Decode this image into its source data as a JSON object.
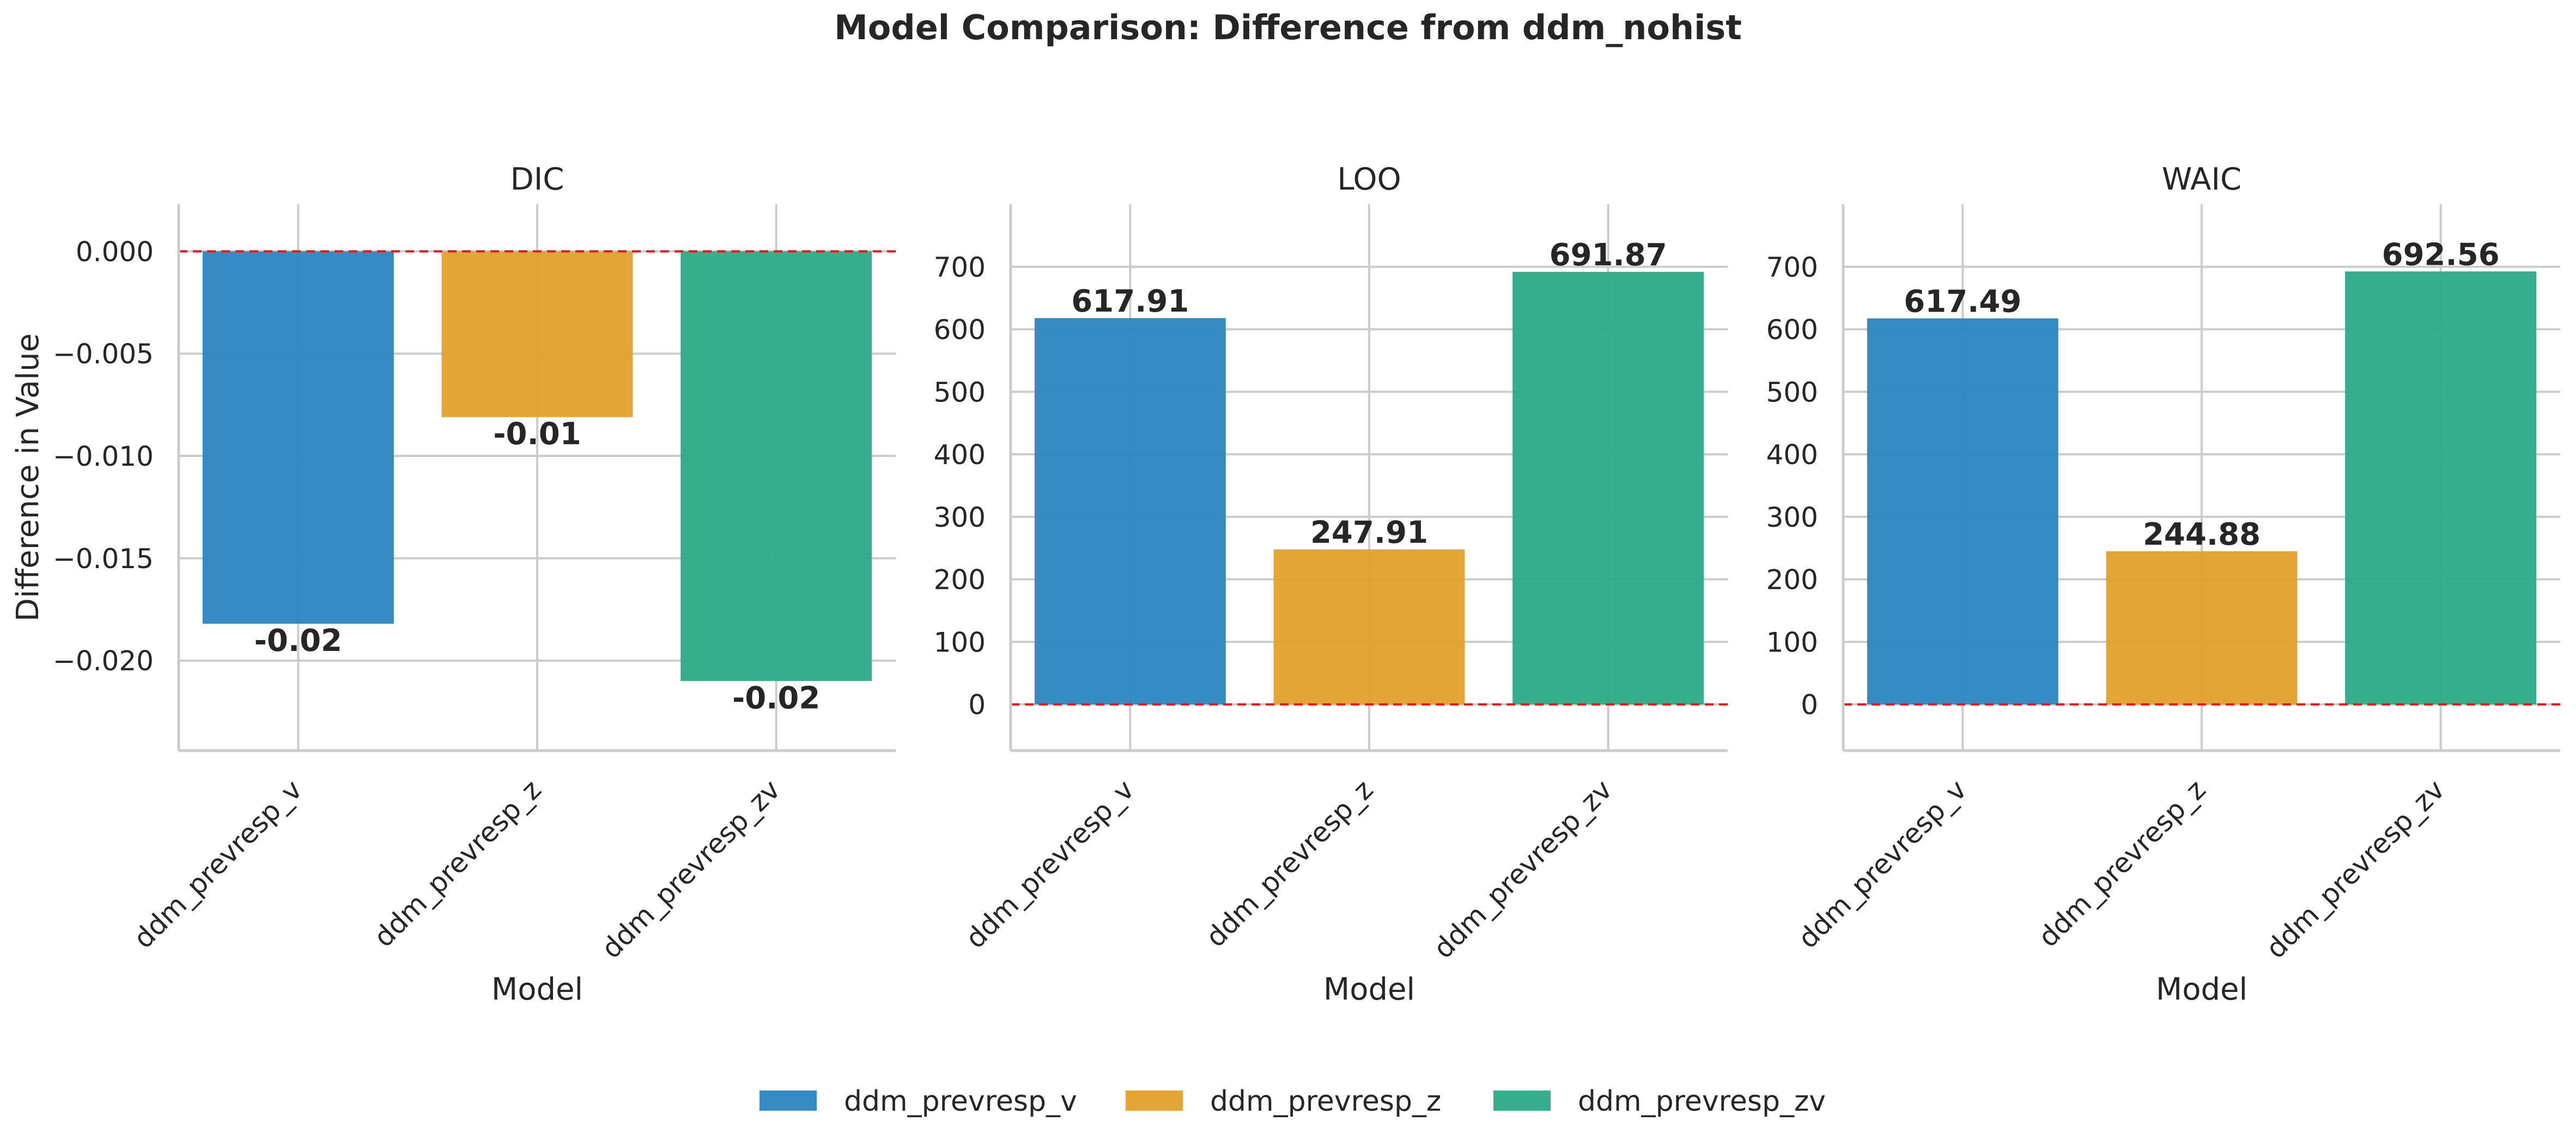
{
  "figure_title": "Model Comparison: Difference from ddm_nohist",
  "legend": {
    "placement": "bottom-center",
    "items": [
      {
        "label": "ddm_prevresp_v",
        "color": "#2b85c0"
      },
      {
        "label": "ddm_prevresp_z",
        "color": "#e2a02b"
      },
      {
        "label": "ddm_prevresp_zv",
        "color": "#2aab85"
      }
    ]
  },
  "colors": {
    "reference_line": "#e31a1c",
    "grid": "#cccccc",
    "axis": "#cccccc"
  },
  "chart_data": [
    {
      "type": "bar",
      "title": "DIC",
      "xlabel": "Model",
      "ylabel": "Difference in Value",
      "categories": [
        "ddm_prevresp_v",
        "ddm_prevresp_z",
        "ddm_prevresp_zv"
      ],
      "values": [
        -0.0182,
        -0.0081,
        -0.021
      ],
      "data_labels": [
        "-0.02",
        "-0.01",
        "-0.02"
      ],
      "ylim": [
        -0.0244,
        0.0023
      ],
      "yticks": [
        0.0,
        -0.005,
        -0.01,
        -0.015,
        -0.02
      ],
      "ytick_labels": [
        "0.000",
        "−0.005",
        "−0.010",
        "−0.015",
        "−0.020"
      ],
      "reference_line": 0,
      "grid": true
    },
    {
      "type": "bar",
      "title": "LOO",
      "xlabel": "Model",
      "ylabel": "",
      "categories": [
        "ddm_prevresp_v",
        "ddm_prevresp_z",
        "ddm_prevresp_zv"
      ],
      "values": [
        617.91,
        247.91,
        691.87
      ],
      "data_labels": [
        "617.91",
        "247.91",
        "691.87"
      ],
      "ylim": [
        -74,
        800
      ],
      "yticks": [
        0,
        100,
        200,
        300,
        400,
        500,
        600,
        700
      ],
      "ytick_labels": [
        "0",
        "100",
        "200",
        "300",
        "400",
        "500",
        "600",
        "700"
      ],
      "reference_line": 0,
      "grid": true
    },
    {
      "type": "bar",
      "title": "WAIC",
      "xlabel": "Model",
      "ylabel": "",
      "categories": [
        "ddm_prevresp_v",
        "ddm_prevresp_z",
        "ddm_prevresp_zv"
      ],
      "values": [
        617.49,
        244.88,
        692.56
      ],
      "data_labels": [
        "617.49",
        "244.88",
        "692.56"
      ],
      "ylim": [
        -74,
        800
      ],
      "yticks": [
        0,
        100,
        200,
        300,
        400,
        500,
        600,
        700
      ],
      "ytick_labels": [
        "0",
        "100",
        "200",
        "300",
        "400",
        "500",
        "600",
        "700"
      ],
      "reference_line": 0,
      "grid": true
    }
  ]
}
